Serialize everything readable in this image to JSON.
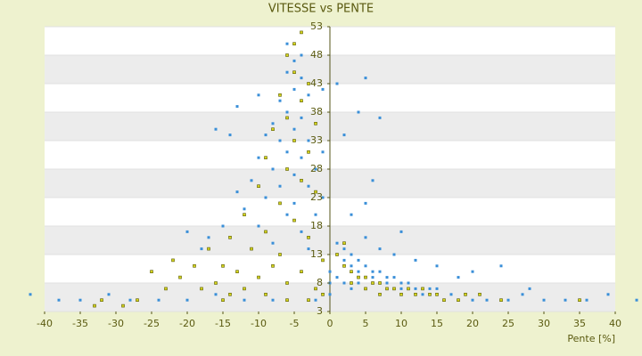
{
  "chart_data": {
    "type": "scatter",
    "title": "VITESSE vs PENTE",
    "x_label": "Pente [%]",
    "xlim": [
      -40,
      40
    ],
    "xticks": [
      -40,
      -35,
      -30,
      -25,
      -20,
      -15,
      -10,
      -5,
      0,
      5,
      10,
      15,
      20,
      25,
      30,
      35,
      40
    ],
    "ylim": [
      3,
      53
    ],
    "yticks": [
      3,
      8,
      13,
      18,
      23,
      28,
      33,
      38,
      43,
      48,
      53
    ],
    "grid": true,
    "series": [
      {
        "color": "#3a8fd8",
        "x": [
          -5,
          -6,
          -4,
          -5,
          -7,
          -3,
          -6,
          -8,
          -4,
          -5,
          -2,
          -9,
          -7,
          -3,
          -6,
          -10,
          -4,
          -1,
          -8,
          -5,
          -2,
          -11,
          -7,
          -3,
          -13,
          -9,
          -5,
          -1,
          -12,
          -6,
          -2,
          -15,
          -10,
          -4,
          -8,
          -17,
          -14,
          -16,
          -13,
          -10,
          -6,
          -4,
          -1,
          1,
          2,
          4,
          5,
          7,
          -20,
          -18,
          -3,
          1,
          2,
          3,
          2,
          4,
          3,
          5,
          6,
          4,
          7,
          8,
          6,
          9,
          10,
          8,
          11,
          12,
          14,
          15,
          10,
          13,
          17,
          19,
          20,
          22,
          25,
          5,
          7,
          9,
          12,
          10,
          15,
          18,
          20,
          24,
          28,
          3,
          5,
          6,
          1,
          2,
          3,
          4,
          -42,
          -38,
          -35,
          -31,
          -28,
          -24,
          -20,
          -16,
          -12,
          -8,
          30,
          33,
          36,
          39,
          43,
          27,
          -2,
          0,
          0,
          0
        ],
        "values": [
          47,
          45,
          44,
          42,
          40,
          41,
          38,
          36,
          37,
          35,
          36,
          34,
          33,
          33,
          31,
          30,
          30,
          31,
          28,
          27,
          28,
          26,
          25,
          25,
          24,
          23,
          22,
          23,
          21,
          20,
          20,
          18,
          18,
          17,
          15,
          16,
          34,
          35,
          39,
          41,
          50,
          48,
          42,
          43,
          34,
          38,
          44,
          37,
          17,
          14,
          14,
          15,
          14,
          13,
          12,
          12,
          11,
          11,
          10,
          10,
          10,
          9,
          9,
          9,
          8,
          8,
          8,
          7,
          7,
          7,
          7,
          6,
          6,
          6,
          5,
          5,
          5,
          16,
          14,
          13,
          12,
          17,
          11,
          9,
          10,
          11,
          7,
          20,
          22,
          26,
          9,
          8,
          7,
          8,
          6,
          5,
          5,
          6,
          5,
          5,
          5,
          6,
          5,
          5,
          5,
          5,
          5,
          6,
          5,
          6,
          5,
          6,
          8,
          10
        ]
      },
      {
        "color": "#d4d41c",
        "x": [
          -4,
          -5,
          -6,
          -5,
          -3,
          -7,
          -4,
          -6,
          -2,
          -8,
          -5,
          -3,
          -9,
          -6,
          -4,
          -10,
          -2,
          -7,
          -12,
          -5,
          -9,
          -14,
          -3,
          -11,
          -17,
          -7,
          -22,
          -19,
          -15,
          -25,
          -13,
          -8,
          -21,
          -16,
          -10,
          -18,
          -23,
          -12,
          -6,
          -4,
          -1,
          -14,
          -9,
          -2,
          1,
          2,
          3,
          4,
          5,
          6,
          7,
          8,
          9,
          10,
          12,
          14,
          16,
          18,
          21,
          24,
          3,
          5,
          7,
          11,
          13,
          2,
          15,
          19,
          -32,
          -27,
          -33,
          -29,
          -15,
          -6,
          -3,
          -1,
          35
        ],
        "values": [
          52,
          50,
          48,
          45,
          43,
          41,
          40,
          37,
          36,
          35,
          33,
          31,
          30,
          28,
          26,
          25,
          24,
          22,
          20,
          19,
          17,
          16,
          16,
          14,
          14,
          13,
          12,
          11,
          11,
          10,
          10,
          11,
          9,
          8,
          9,
          7,
          7,
          7,
          8,
          10,
          12,
          6,
          6,
          7,
          13,
          11,
          10,
          9,
          9,
          8,
          8,
          7,
          7,
          6,
          6,
          6,
          5,
          5,
          6,
          5,
          8,
          7,
          6,
          7,
          7,
          15,
          6,
          6,
          5,
          5,
          4,
          4,
          5,
          5,
          5,
          6,
          5
        ]
      }
    ]
  }
}
